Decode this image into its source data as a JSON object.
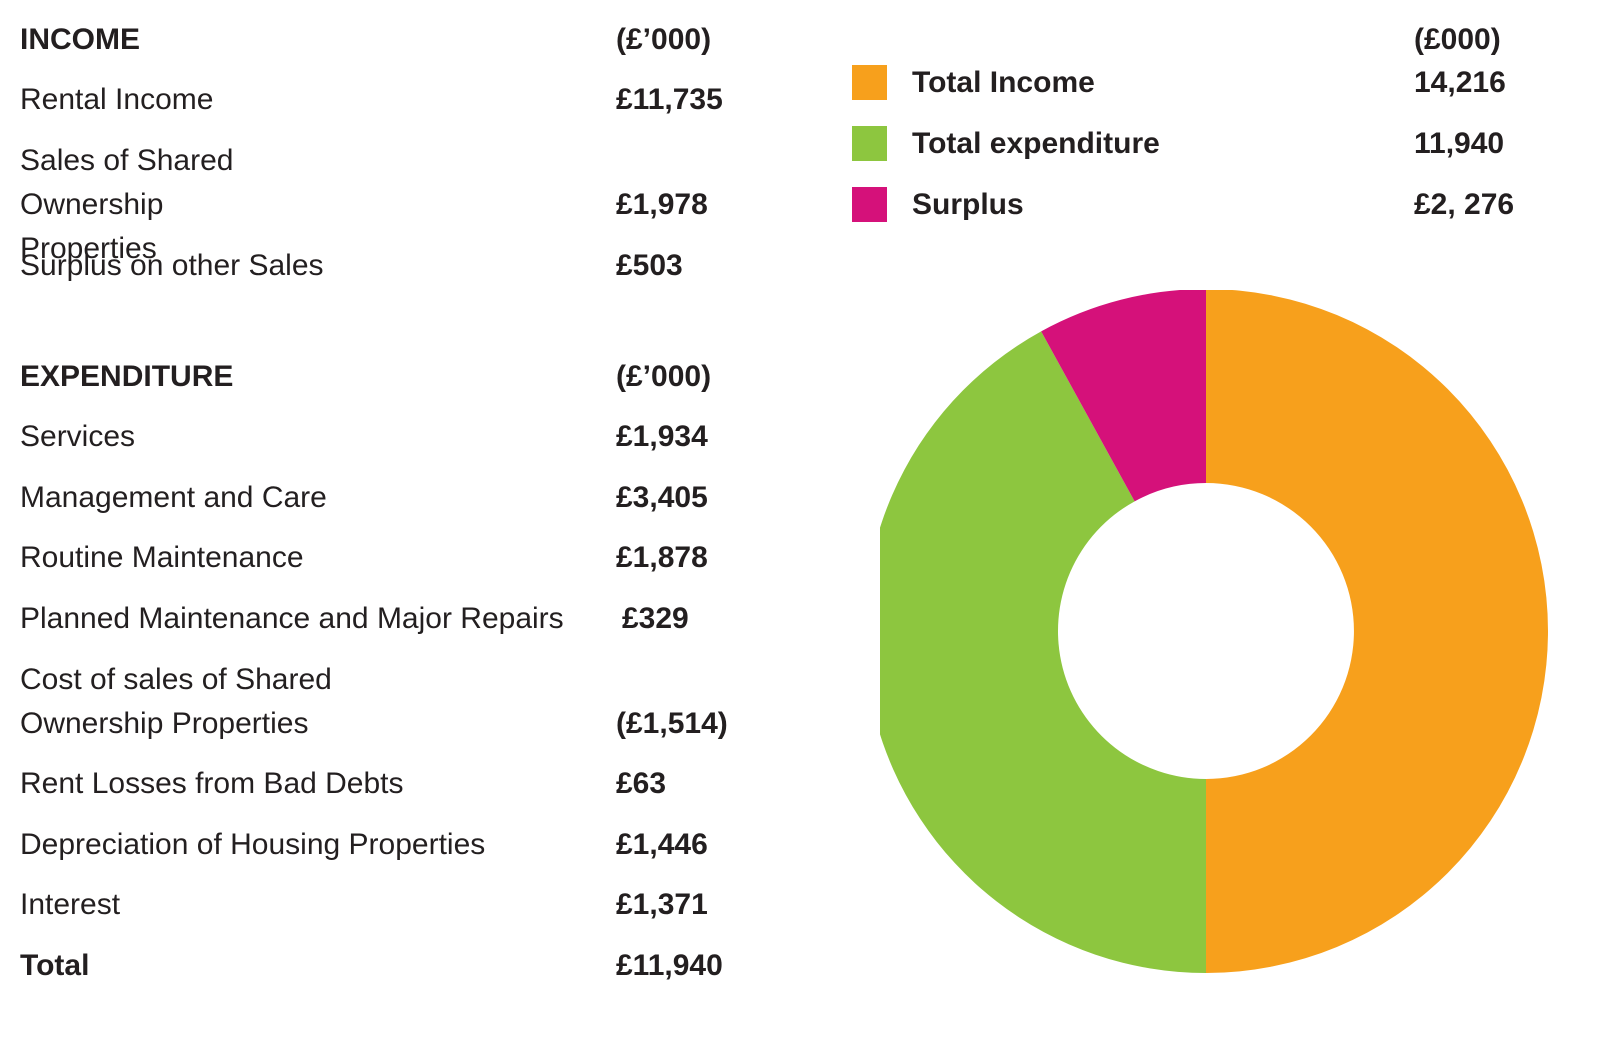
{
  "income": {
    "heading": "INCOME",
    "unit": "(£’000)",
    "rows": [
      {
        "label": "Rental Income",
        "value": "£11,735"
      },
      {
        "label": "Sales of Shared Ownership Properties",
        "value": "£1,978"
      },
      {
        "label": "Surplus on other Sales",
        "value": "£503"
      }
    ]
  },
  "expenditure": {
    "heading": "EXPENDITURE",
    "unit": "(£’000)",
    "rows": [
      {
        "label": "Services",
        "value": "£1,934"
      },
      {
        "label": "Management and Care",
        "value": "£3,405"
      },
      {
        "label": "Routine Maintenance",
        "value": "£1,878"
      },
      {
        "label": "Planned Maintenance and Major Repairs",
        "value": "£329"
      },
      {
        "label": "Cost of sales of Shared Ownership Properties",
        "value": "(£1,514)"
      },
      {
        "label": "Rent Losses from Bad Debts",
        "value": "£63"
      },
      {
        "label": "Depreciation of Housing Properties",
        "value": "£1,446"
      },
      {
        "label": "Interest",
        "value": "£1,371"
      }
    ],
    "total_label": "Total",
    "total_value": "£11,940"
  },
  "legend": {
    "unit": "(£000)",
    "items": [
      {
        "name": "Total Income",
        "value": "14,216",
        "color": "#f7a01c"
      },
      {
        "name": "Total expenditure",
        "value": "11,940",
        "color": "#8dc63f"
      },
      {
        "name": "Surplus",
        "value": "£2, 276",
        "color": "#d5117a"
      }
    ]
  },
  "chart_data": {
    "type": "pie",
    "style": "donut",
    "categories": [
      "Total Income",
      "Total expenditure",
      "Surplus"
    ],
    "values": [
      14216,
      11940,
      2276
    ],
    "colors": [
      "#f7a01c",
      "#8dc63f",
      "#d5117a"
    ],
    "start": "top",
    "direction": "clockwise",
    "legend": "top"
  }
}
